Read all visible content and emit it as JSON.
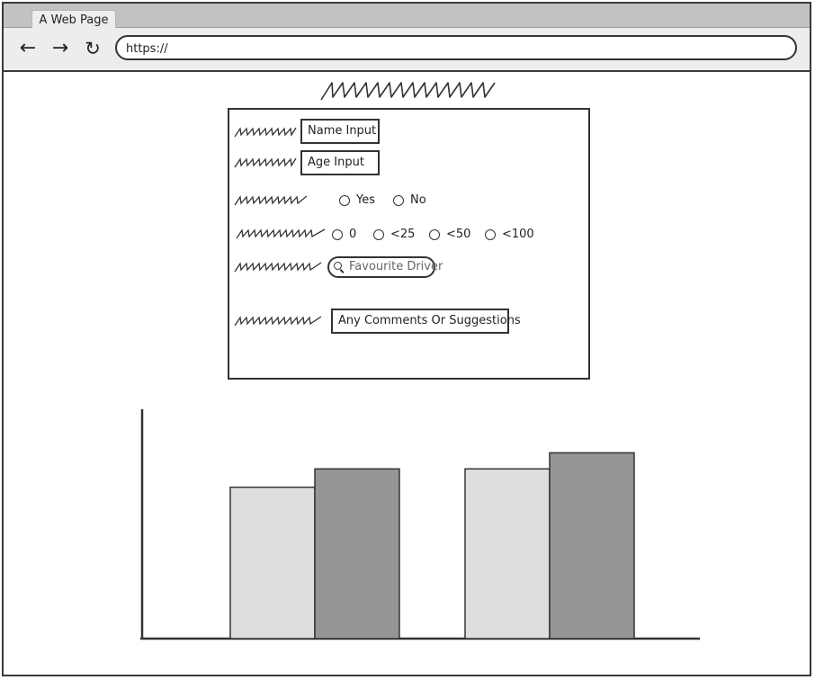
{
  "browser": {
    "tab_title": "A Web Page",
    "url": "https://",
    "back_icon": "back-arrow-icon",
    "forward_icon": "forward-arrow-icon",
    "reload_icon": "reload-icon"
  },
  "form": {
    "name_input": "Name Input",
    "age_input": "Age Input",
    "yes_no_options": [
      "Yes",
      "No"
    ],
    "range_options": [
      "0",
      "<25",
      "<50",
      "<100"
    ],
    "search_placeholder": "Favourite Driver",
    "comments_input": "Any Comments Or Suggestions"
  },
  "chart_data": {
    "type": "bar",
    "categories": [
      "",
      ""
    ],
    "series": [
      {
        "values": [
          66,
          74
        ],
        "color": "#dedede"
      },
      {
        "values": [
          74,
          81
        ],
        "color": "#959595"
      }
    ],
    "ylim": [
      0,
      100
    ],
    "grid": false
  }
}
